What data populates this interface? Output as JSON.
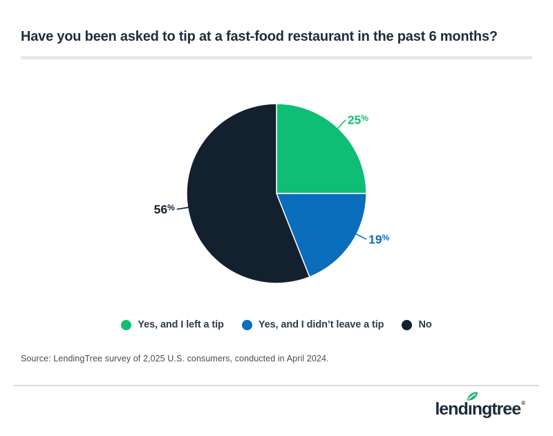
{
  "page": {
    "title": "Have you been asked to tip at a fast-food restaurant in the past 6 months?",
    "source": "Source: LendingTree survey of 2,025 U.S. consumers, conducted in April 2024.",
    "logo": {
      "part1": "lend",
      "part2": "ı",
      "part3": "ngtree",
      "registered": "®"
    }
  },
  "chart_data": {
    "type": "pie",
    "title": "Have you been asked to tip at a fast-food restaurant in the past 6 months?",
    "value_suffix": "%",
    "legend_position": "bottom",
    "slices": [
      {
        "label": "Yes, and I left a tip",
        "value": 25,
        "color": "#0fbe75",
        "label_frac": 0.12
      },
      {
        "label": "Yes, and I didn’t leave a tip",
        "value": 19,
        "color": "#0a6ebd",
        "label_frac": 0.325
      },
      {
        "label": "No",
        "value": 56,
        "color": "#13202e",
        "label_frac": 0.725
      }
    ],
    "colors": {
      "title_text": "#1d2d3e",
      "legend_text": "#2f3b45",
      "divider": "#e8e8e8",
      "logo_navy": "#1c2b3a",
      "logo_leaf_green": "#21b573"
    }
  }
}
